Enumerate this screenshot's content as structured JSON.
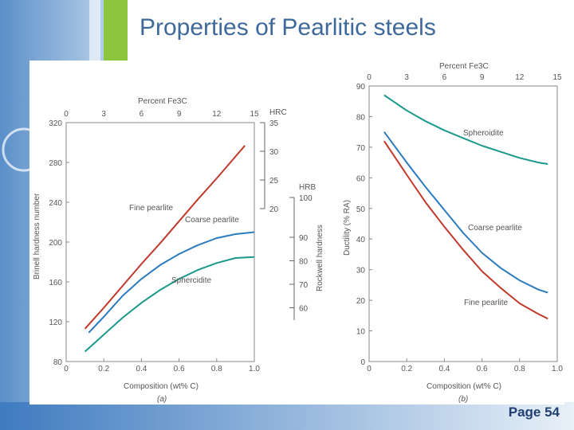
{
  "slide": {
    "title": "Properties of Pearlitic steels",
    "page_label": "Page 54",
    "colors": {
      "title": "#3d6a9a",
      "accent_bar": "#1f4f86",
      "green_stripe": "#8cc63f"
    }
  },
  "chart_data": [
    {
      "type": "line",
      "panel_label": "(a)",
      "xlabel": "Composition (wt% C)",
      "ylabel": "Brinell hardness number",
      "top_axis_label": "Percent Fe3C",
      "xlim": [
        0,
        1.0
      ],
      "ylim": [
        80,
        320
      ],
      "x_ticks": [
        "0",
        "0.2",
        "0.4",
        "0.6",
        "0.8",
        "1.0"
      ],
      "y_ticks": [
        "80",
        "120",
        "160",
        "200",
        "240",
        "280",
        "320"
      ],
      "top_ticks": [
        "0",
        "3",
        "6",
        "9",
        "12",
        "15"
      ],
      "hrc_axis": {
        "label": "HRC",
        "ticks": [
          "35",
          "30",
          "25",
          "20"
        ]
      },
      "hrb_axis": {
        "label": "HRB",
        "ticks": [
          "100",
          "90",
          "80",
          "70",
          "60"
        ],
        "title": "Rockwell hardness"
      },
      "series": [
        {
          "name": "Fine pearlite",
          "color": "#c0392b",
          "x": [
            0.1,
            0.2,
            0.3,
            0.4,
            0.5,
            0.6,
            0.7,
            0.8,
            0.9,
            0.95
          ],
          "y": [
            113,
            134,
            156,
            178,
            199,
            221,
            243,
            264,
            286,
            297
          ]
        },
        {
          "name": "Coarse pearlite",
          "color": "#2a7bbf",
          "x": [
            0.12,
            0.2,
            0.3,
            0.4,
            0.5,
            0.6,
            0.7,
            0.8,
            0.9,
            1.0
          ],
          "y": [
            109,
            125,
            146,
            163,
            177,
            188,
            197,
            204,
            208,
            210
          ]
        },
        {
          "name": "Spheroidite",
          "color": "#1a9a8a",
          "x": [
            0.1,
            0.2,
            0.3,
            0.4,
            0.5,
            0.6,
            0.7,
            0.8,
            0.9,
            1.0
          ],
          "y": [
            90,
            107,
            124,
            139,
            152,
            163,
            172,
            179,
            184,
            185
          ]
        }
      ],
      "annotations": [
        "Fine pearlite",
        "Coarse pearlite",
        "Sphercidite"
      ]
    },
    {
      "type": "line",
      "panel_label": "(b)",
      "xlabel": "Composition (wt% C)",
      "ylabel": "Ductility (% RA)",
      "top_axis_label": "Percent Fe3C",
      "xlim": [
        0,
        1.0
      ],
      "ylim": [
        0,
        90
      ],
      "x_ticks": [
        "0",
        "0.2",
        "0.4",
        "0.6",
        "0.8",
        "1.0"
      ],
      "y_ticks": [
        "0",
        "10",
        "20",
        "30",
        "40",
        "50",
        "60",
        "70",
        "80",
        "90"
      ],
      "top_ticks": [
        "0",
        "3",
        "6",
        "9",
        "12",
        "15"
      ],
      "series": [
        {
          "name": "Spheroidite",
          "color": "#1a9a8a",
          "x": [
            0.08,
            0.2,
            0.3,
            0.4,
            0.5,
            0.6,
            0.7,
            0.8,
            0.9,
            0.95
          ],
          "y": [
            87,
            82,
            78.5,
            75.5,
            73,
            70.5,
            68.5,
            66.5,
            65,
            64.5
          ]
        },
        {
          "name": "Coarse pearlite",
          "color": "#2a7bbf",
          "x": [
            0.08,
            0.2,
            0.3,
            0.4,
            0.5,
            0.6,
            0.7,
            0.8,
            0.9,
            0.95
          ],
          "y": [
            75,
            65,
            57,
            49.5,
            42,
            35.5,
            30.5,
            26.5,
            23.5,
            22.5
          ]
        },
        {
          "name": "Fine pearlite",
          "color": "#c0392b",
          "x": [
            0.08,
            0.2,
            0.3,
            0.4,
            0.5,
            0.6,
            0.7,
            0.8,
            0.9,
            0.95
          ],
          "y": [
            72,
            61,
            52,
            44,
            36.5,
            29.5,
            24,
            19,
            15.5,
            14
          ]
        }
      ],
      "annotations": [
        "Spheroidite",
        "Coarse pearlite",
        "Fine pearlite"
      ]
    }
  ]
}
